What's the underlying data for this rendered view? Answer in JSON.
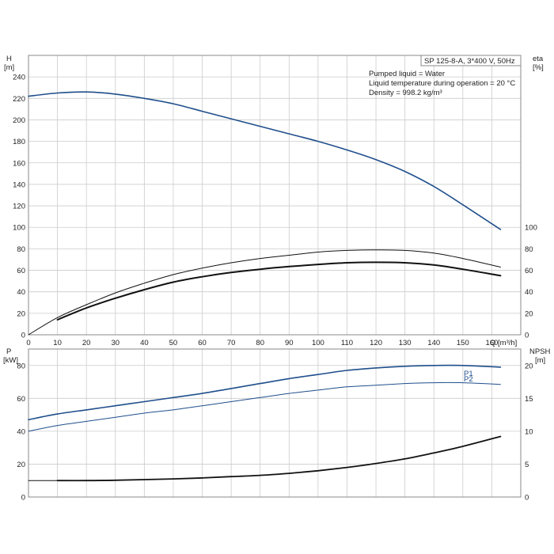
{
  "info_box": {
    "model": "SP 125-8-A, 3*400 V, 50Hz",
    "lines": [
      "Pumped liquid = Water",
      "Liquid temperature during operation = 20 °C",
      "Density = 998.2 kg/m³"
    ]
  },
  "colors": {
    "blue": "#1f4e8c",
    "black": "#111111",
    "grid": "#cccccc",
    "frame": "#888888"
  },
  "chart_data": [
    {
      "type": "line",
      "x_axis": {
        "label": "Q [m³/h]",
        "ticks": [
          0,
          10,
          20,
          30,
          40,
          50,
          60,
          70,
          80,
          90,
          100,
          110,
          120,
          130,
          140,
          150,
          160
        ],
        "range": [
          0,
          170
        ]
      },
      "y_left": {
        "label": "H",
        "unit": "[m]",
        "ticks": [
          0,
          20,
          40,
          60,
          80,
          100,
          120,
          140,
          160,
          180,
          200,
          220,
          240
        ],
        "range": [
          0,
          260
        ]
      },
      "y_right": {
        "label": "eta",
        "unit": "[%]",
        "ticks": [
          0,
          20,
          40,
          60,
          80,
          100
        ],
        "range": [
          0,
          260
        ]
      },
      "grid": true,
      "series": [
        {
          "key": "H",
          "axis": "left",
          "color": "#1f4e8c",
          "width": 1.6,
          "points": [
            [
              0,
              222
            ],
            [
              10,
              225
            ],
            [
              20,
              226
            ],
            [
              30,
              224
            ],
            [
              40,
              220
            ],
            [
              50,
              215
            ],
            [
              60,
              208
            ],
            [
              70,
              201
            ],
            [
              80,
              194
            ],
            [
              90,
              187
            ],
            [
              100,
              180
            ],
            [
              110,
              172
            ],
            [
              120,
              163
            ],
            [
              130,
              152
            ],
            [
              140,
              138
            ],
            [
              150,
              121
            ],
            [
              163,
              98
            ]
          ]
        },
        {
          "key": "eta_pump",
          "axis": "right",
          "color": "#111111",
          "width": 1,
          "points": [
            [
              0,
              0
            ],
            [
              10,
              16
            ],
            [
              20,
              28
            ],
            [
              30,
              39
            ],
            [
              40,
              48
            ],
            [
              50,
              56
            ],
            [
              60,
              62
            ],
            [
              70,
              67
            ],
            [
              80,
              71
            ],
            [
              90,
              74
            ],
            [
              100,
              77
            ],
            [
              110,
              78.5
            ],
            [
              120,
              79
            ],
            [
              130,
              78.5
            ],
            [
              140,
              76
            ],
            [
              150,
              71
            ],
            [
              163,
              63
            ]
          ]
        },
        {
          "key": "eta_total",
          "axis": "right",
          "color": "#111111",
          "width": 2,
          "points": [
            [
              10,
              14
            ],
            [
              20,
              25
            ],
            [
              30,
              34
            ],
            [
              40,
              42
            ],
            [
              50,
              49
            ],
            [
              60,
              54
            ],
            [
              70,
              58
            ],
            [
              80,
              61
            ],
            [
              90,
              63.5
            ],
            [
              100,
              65.5
            ],
            [
              110,
              67
            ],
            [
              120,
              67.5
            ],
            [
              130,
              67
            ],
            [
              140,
              65
            ],
            [
              150,
              61
            ],
            [
              163,
              55
            ]
          ]
        }
      ]
    },
    {
      "type": "line",
      "x_axis": {
        "ticks": [
          0,
          10,
          20,
          30,
          40,
          50,
          60,
          70,
          80,
          90,
          100,
          110,
          120,
          130,
          140,
          150,
          160
        ],
        "range": [
          0,
          170
        ]
      },
      "y_left": {
        "label": "P",
        "unit": "[kW]",
        "ticks": [
          0,
          20,
          40,
          60,
          80
        ],
        "range": [
          0,
          90
        ]
      },
      "y_right": {
        "label": "NPSH",
        "unit": "[m]",
        "ticks": [
          0,
          5,
          10,
          15,
          20
        ],
        "range": [
          0,
          22.5
        ]
      },
      "grid": true,
      "series": [
        {
          "key": "P1",
          "name": "P1",
          "axis": "left",
          "color": "#1f4e8c",
          "width": 1.6,
          "points": [
            [
              0,
              47
            ],
            [
              10,
              50.5
            ],
            [
              20,
              53
            ],
            [
              30,
              55.5
            ],
            [
              40,
              58
            ],
            [
              50,
              60.5
            ],
            [
              60,
              63
            ],
            [
              70,
              66
            ],
            [
              80,
              69
            ],
            [
              90,
              72
            ],
            [
              100,
              74.5
            ],
            [
              110,
              77
            ],
            [
              120,
              78.5
            ],
            [
              130,
              79.5
            ],
            [
              140,
              80
            ],
            [
              150,
              80
            ],
            [
              163,
              79
            ]
          ]
        },
        {
          "key": "P2",
          "name": "P2",
          "axis": "left",
          "color": "#1f4e8c",
          "width": 1,
          "points": [
            [
              0,
              40
            ],
            [
              10,
              43.5
            ],
            [
              20,
              46
            ],
            [
              30,
              48.5
            ],
            [
              40,
              51
            ],
            [
              50,
              53
            ],
            [
              60,
              55.5
            ],
            [
              70,
              58
            ],
            [
              80,
              60.5
            ],
            [
              90,
              63
            ],
            [
              100,
              65
            ],
            [
              110,
              67
            ],
            [
              120,
              68
            ],
            [
              130,
              69
            ],
            [
              140,
              69.5
            ],
            [
              150,
              69.5
            ],
            [
              163,
              68.5
            ]
          ]
        },
        {
          "key": "NPSH_flat",
          "axis": "right",
          "color": "#111111",
          "width": 1,
          "points": [
            [
              0,
              2.5
            ],
            [
              10,
              2.5
            ]
          ]
        },
        {
          "key": "NPSH",
          "axis": "right",
          "color": "#111111",
          "width": 1.8,
          "points": [
            [
              10,
              2.5
            ],
            [
              20,
              2.5
            ],
            [
              30,
              2.55
            ],
            [
              40,
              2.65
            ],
            [
              50,
              2.75
            ],
            [
              60,
              2.9
            ],
            [
              70,
              3.1
            ],
            [
              80,
              3.3
            ],
            [
              90,
              3.6
            ],
            [
              100,
              4.0
            ],
            [
              110,
              4.5
            ],
            [
              120,
              5.1
            ],
            [
              130,
              5.8
            ],
            [
              140,
              6.7
            ],
            [
              150,
              7.7
            ],
            [
              163,
              9.2
            ]
          ]
        }
      ]
    }
  ]
}
